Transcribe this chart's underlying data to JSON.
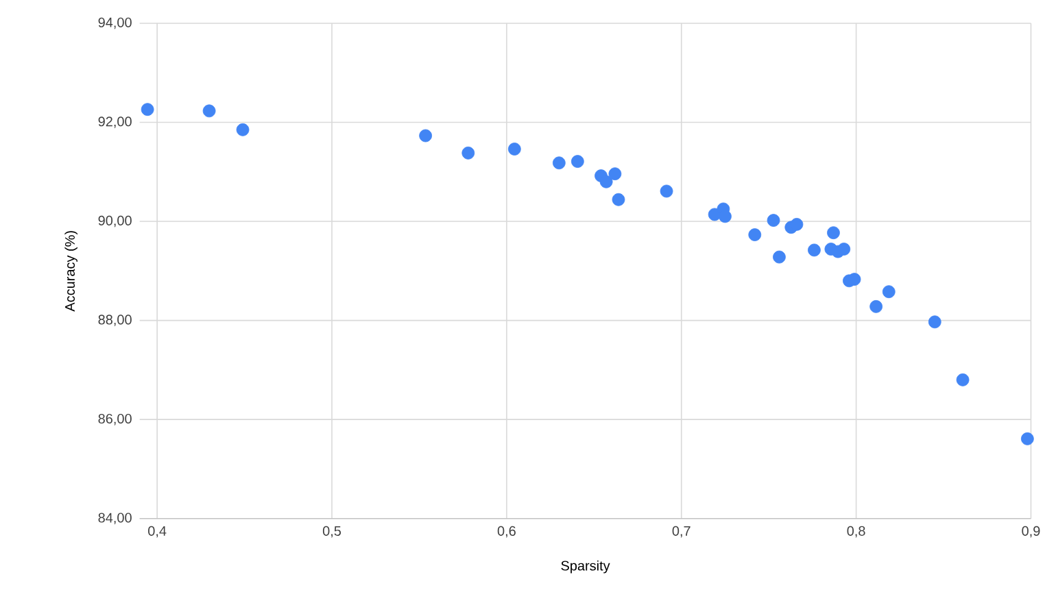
{
  "chart_data": {
    "type": "scatter",
    "xlabel": "Sparsity",
    "ylabel": "Accuracy (%)",
    "x": [
      0.3945,
      0.4298,
      0.449,
      0.5536,
      0.578,
      0.6045,
      0.63,
      0.6406,
      0.654,
      0.657,
      0.662,
      0.664,
      0.6915,
      0.719,
      0.724,
      0.725,
      0.742,
      0.7527,
      0.756,
      0.7628,
      0.766,
      0.776,
      0.787,
      0.7856,
      0.7896,
      0.793,
      0.796,
      0.799,
      0.8114,
      0.8187,
      0.845,
      0.861,
      0.898
    ],
    "values": [
      92.26,
      92.23,
      91.85,
      91.73,
      91.38,
      91.46,
      91.18,
      91.21,
      90.92,
      90.8,
      90.96,
      90.44,
      90.61,
      90.14,
      90.25,
      90.1,
      89.73,
      90.02,
      89.28,
      89.88,
      89.94,
      89.42,
      89.77,
      89.44,
      89.39,
      89.44,
      88.8,
      88.83,
      88.28,
      88.58,
      87.97,
      86.8,
      85.61
    ],
    "color": "#4285f4",
    "marker": "circle",
    "grid": true,
    "xlim": [
      0.39,
      0.9
    ],
    "ylim": [
      84,
      94
    ],
    "xticks": [
      {
        "value": 0.4,
        "label": "0,4"
      },
      {
        "value": 0.5,
        "label": "0,5"
      },
      {
        "value": 0.6,
        "label": "0,6"
      },
      {
        "value": 0.7,
        "label": "0,7"
      },
      {
        "value": 0.8,
        "label": "0,8"
      },
      {
        "value": 0.9,
        "label": "0,9"
      }
    ],
    "yticks": [
      {
        "value": 84,
        "label": "84,00"
      },
      {
        "value": 86,
        "label": "86,00"
      },
      {
        "value": 88,
        "label": "88,00"
      },
      {
        "value": 90,
        "label": "90,00"
      },
      {
        "value": 92,
        "label": "92,00"
      },
      {
        "value": 94,
        "label": "94,00"
      }
    ]
  }
}
